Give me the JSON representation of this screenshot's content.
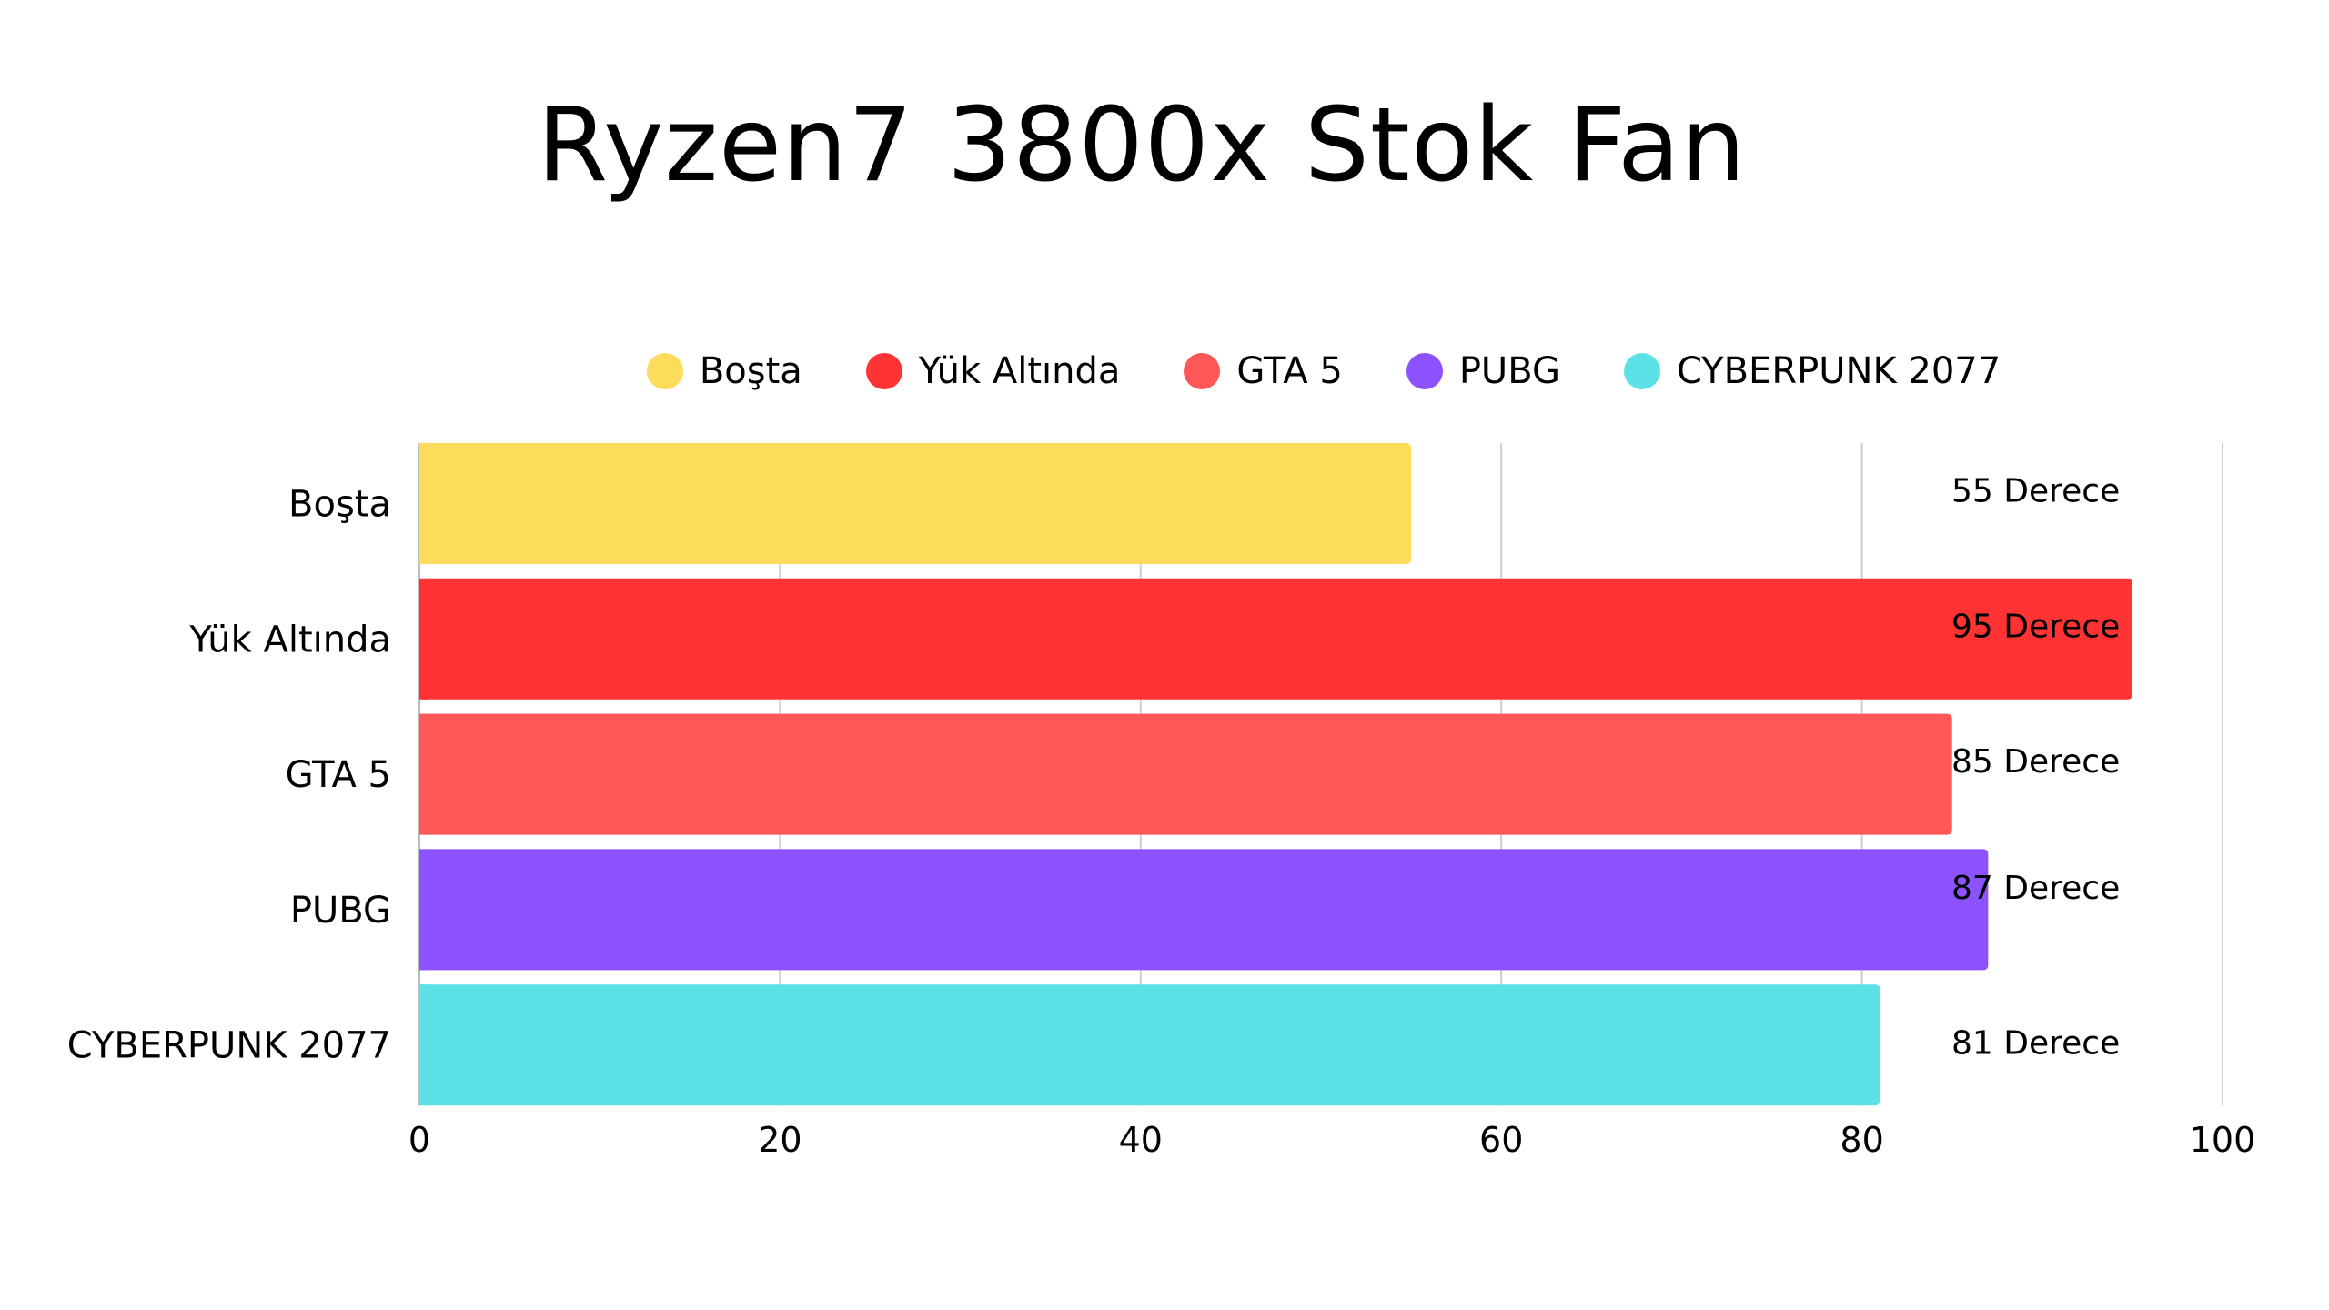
{
  "chart_data": {
    "type": "bar",
    "orientation": "horizontal",
    "title": "Ryzen7 3800x Stok Fan",
    "categories": [
      "Boşta",
      "Yük Altında",
      "GTA 5",
      "PUBG",
      "CYBERPUNK 2077"
    ],
    "values": [
      55,
      95,
      85,
      87,
      81
    ],
    "data_labels": [
      "55 Derece",
      "95 Derece",
      "85 Derece",
      "87 Derece",
      "81 Derece"
    ],
    "colors": [
      "#FDDC5C",
      "#FF3333",
      "#FF5757",
      "#8C52FF",
      "#5CE1E6"
    ],
    "legend": [
      "Boşta",
      "Yük Altında",
      "GTA 5",
      "PUBG",
      "CYBERPUNK 2077"
    ],
    "legend_position": "top",
    "xlim": [
      0,
      100
    ],
    "xticks": [
      "0",
      "20",
      "40",
      "60",
      "80",
      "100"
    ],
    "grid": true,
    "xlabel": "",
    "ylabel": ""
  }
}
